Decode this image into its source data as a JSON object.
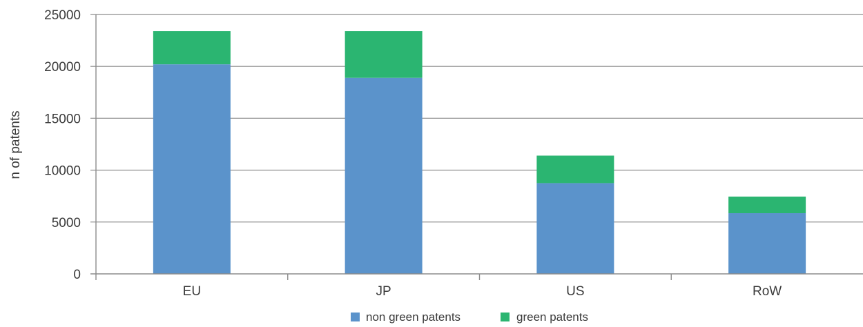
{
  "chart_data": {
    "type": "bar",
    "stacked": true,
    "categories": [
      "EU",
      "JP",
      "US",
      "RoW"
    ],
    "series": [
      {
        "name": "non green patents",
        "color": "#5b93cb",
        "values": [
          20200,
          18900,
          8750,
          5850
        ]
      },
      {
        "name": "green patents",
        "color": "#2bb571",
        "values": [
          3200,
          4500,
          2650,
          1600
        ]
      }
    ],
    "ylabel": "n of patents",
    "ylim": [
      0,
      25000
    ],
    "yticks": [
      0,
      5000,
      10000,
      15000,
      20000,
      25000
    ],
    "grid": true,
    "legend_position": "bottom"
  }
}
